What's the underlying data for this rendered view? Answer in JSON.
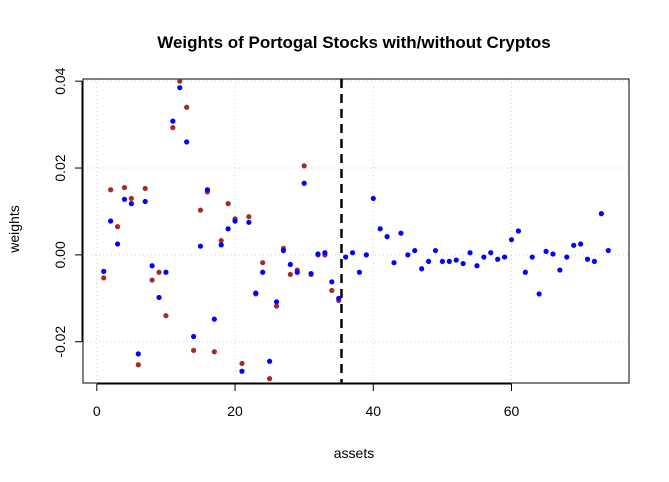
{
  "chart_data": {
    "type": "scatter",
    "title": "Weights of Portogal Stocks with/without Cryptos",
    "xlabel": "assets",
    "ylabel": "weights",
    "xlim": [
      -2.0,
      77.0
    ],
    "ylim": [
      -0.0295,
      0.0405
    ],
    "grid": true,
    "grid_style": "dotted",
    "vline_x": 35.4,
    "x_ticks": [
      0,
      20,
      40,
      60
    ],
    "x_tick_labels": [
      "0",
      "20",
      "40",
      "60"
    ],
    "y_ticks": [
      -0.02,
      0.0,
      0.02,
      0.04
    ],
    "y_tick_labels": [
      "-0.02",
      "0.00",
      "0.02",
      "0.04"
    ],
    "colors": {
      "blue_series": "#0000ff",
      "brown_series": "#a52a2a",
      "vline": "#000000",
      "grid": "#d3d3d3"
    },
    "series": [
      {
        "color": "#a52a2a",
        "x": [
          1,
          2,
          3,
          4,
          5,
          6,
          7,
          8,
          9,
          10,
          11,
          12,
          13,
          14,
          15,
          16,
          17,
          18,
          19,
          20,
          21,
          22,
          23,
          24,
          25,
          26,
          27,
          28,
          29,
          30,
          31,
          32,
          33,
          34,
          35
        ],
        "values": [
          -0.0053,
          0.015,
          0.0065,
          0.0155,
          0.013,
          -0.0253,
          0.0153,
          -0.0058,
          -0.004,
          -0.014,
          0.0293,
          0.04,
          0.034,
          -0.022,
          0.0103,
          0.0145,
          -0.0223,
          0.0033,
          0.0118,
          0.0083,
          -0.025,
          0.0088,
          -0.009,
          -0.0018,
          -0.0285,
          -0.0118,
          0.0015,
          -0.0045,
          -0.0035,
          0.0205,
          -0.0045,
          0.0,
          0.0,
          -0.0082,
          -0.0105
        ]
      },
      {
        "color": "#0000ff",
        "x": [
          1,
          2,
          3,
          4,
          5,
          6,
          7,
          8,
          9,
          10,
          11,
          12,
          13,
          14,
          15,
          16,
          17,
          18,
          19,
          20,
          21,
          22,
          23,
          24,
          25,
          26,
          27,
          28,
          29,
          30,
          31,
          32,
          33,
          34,
          35,
          36,
          37,
          38,
          39,
          40,
          41,
          42,
          43,
          44,
          45,
          46,
          47,
          48,
          49,
          50,
          51,
          52,
          53,
          54,
          55,
          56,
          57,
          58,
          59,
          60,
          61,
          62,
          63,
          64,
          65,
          66,
          67,
          68,
          69,
          70,
          71,
          72,
          73,
          74
        ],
        "values": [
          -0.0038,
          0.0078,
          0.0025,
          0.0128,
          0.0118,
          -0.0228,
          0.0123,
          -0.0025,
          -0.0098,
          -0.004,
          0.0308,
          0.0385,
          0.026,
          -0.0188,
          0.002,
          0.015,
          -0.0148,
          0.0023,
          0.006,
          0.0078,
          -0.0268,
          0.0075,
          -0.0088,
          -0.004,
          -0.0245,
          -0.0108,
          0.001,
          -0.0022,
          -0.004,
          0.0165,
          -0.0043,
          0.0002,
          0.0005,
          -0.0062,
          -0.01,
          -0.0005,
          0.0005,
          -0.004,
          0.0,
          0.013,
          0.006,
          0.0042,
          -0.0018,
          0.005,
          0.0,
          0.001,
          -0.0032,
          -0.0015,
          0.001,
          -0.0015,
          -0.0015,
          -0.0012,
          -0.002,
          0.0005,
          -0.0025,
          -0.0005,
          0.0005,
          -0.001,
          -0.0005,
          0.0035,
          0.0055,
          -0.004,
          -0.0005,
          -0.009,
          0.0008,
          0.0002,
          -0.0035,
          -0.0005,
          0.0022,
          0.0025,
          -0.001,
          -0.0015,
          0.0095,
          0.001
        ]
      }
    ]
  }
}
